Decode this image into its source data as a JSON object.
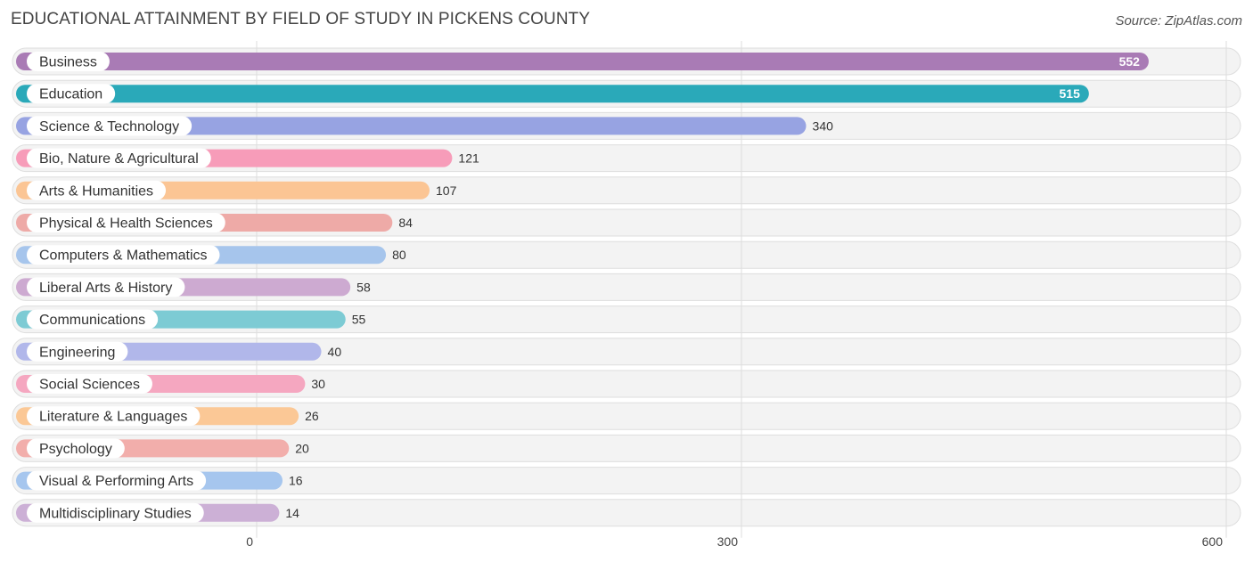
{
  "header": {
    "title": "EDUCATIONAL ATTAINMENT BY FIELD OF STUDY IN PICKENS COUNTY",
    "source": "Source: ZipAtlas.com"
  },
  "chart_data": {
    "type": "bar",
    "orientation": "horizontal",
    "title": "EDUCATIONAL ATTAINMENT BY FIELD OF STUDY IN PICKENS COUNTY",
    "categories": [
      "Business",
      "Education",
      "Science & Technology",
      "Bio, Nature & Agricultural",
      "Arts & Humanities",
      "Physical & Health Sciences",
      "Computers & Mathematics",
      "Liberal Arts & History",
      "Communications",
      "Engineering",
      "Social Sciences",
      "Literature & Languages",
      "Psychology",
      "Visual & Performing Arts",
      "Multidisciplinary Studies"
    ],
    "values": [
      552,
      515,
      340,
      121,
      107,
      84,
      80,
      58,
      55,
      40,
      30,
      26,
      20,
      16,
      14
    ],
    "colors": [
      "#a97bb5",
      "#2aa9b9",
      "#97a3e2",
      "#f79cb9",
      "#fbc594",
      "#eeaaa7",
      "#a6c5ec",
      "#cdaad1",
      "#7dcbd4",
      "#b1b7ea",
      "#f5a7c0",
      "#fbc896",
      "#f2aeab",
      "#a6c6ee",
      "#ccb0d6"
    ],
    "xticks": [
      0,
      300,
      600
    ],
    "xlim": [
      0,
      600
    ],
    "grid": true
  }
}
